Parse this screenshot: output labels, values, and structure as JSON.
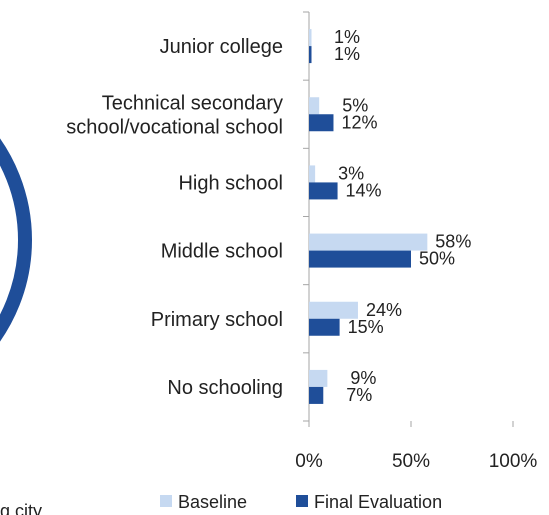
{
  "chart_data": {
    "type": "bar",
    "orientation": "horizontal",
    "categories": [
      [
        "Junior college"
      ],
      [
        "Technical secondary",
        "school/vocational school"
      ],
      [
        "High school"
      ],
      [
        "Middle school"
      ],
      [
        "Primary school"
      ],
      [
        "No schooling"
      ]
    ],
    "series": [
      {
        "name": "Baseline",
        "values": [
          1,
          5,
          3,
          58,
          24,
          9
        ],
        "labels": [
          "1%",
          "5%",
          "3%",
          "58%",
          "24%",
          "9%"
        ]
      },
      {
        "name": "Final Evaluation",
        "values": [
          1,
          12,
          14,
          50,
          15,
          7
        ],
        "labels": [
          "1%",
          "12%",
          "14%",
          "50%",
          "15%",
          "7%"
        ]
      }
    ],
    "xlim": [
      0,
      100
    ],
    "xticks": [
      "0%",
      "50%",
      "100%"
    ],
    "grid": false,
    "legend_position": "bottom"
  },
  "colors": {
    "baseline": "#c6d9f1",
    "final": "#1f4e99",
    "pie_edge": "#1f4e99",
    "axis": "#a6a6a6"
  },
  "fragments": {
    "cut_off_text": "g city"
  }
}
